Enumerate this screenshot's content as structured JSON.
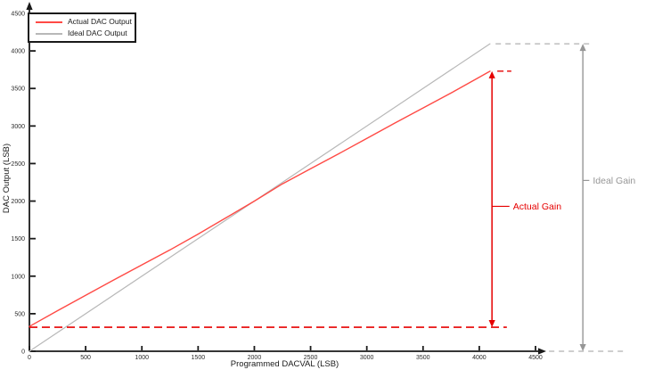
{
  "chart_data": {
    "type": "line",
    "title": "",
    "xlabel": "Programmed DACVAL (LSB)",
    "ylabel": "DAC Output (LSB)",
    "xlim": [
      0,
      4500
    ],
    "ylim": [
      0,
      4500
    ],
    "x_ticks": [
      0,
      500,
      1000,
      1500,
      2000,
      2500,
      3000,
      3500,
      4000,
      4500
    ],
    "y_ticks": [
      0,
      500,
      1000,
      1500,
      2000,
      2500,
      3000,
      3500,
      4000,
      4500
    ],
    "grid": false,
    "axis_color": "#1a1a1a",
    "tick_label_color": "#2b2b2b",
    "legend": {
      "position": "top-left",
      "entries": [
        {
          "label": "Actual DAC Output",
          "color": "#ff4a45"
        },
        {
          "label": "Ideal DAC Output",
          "color": "#b8b8b8"
        }
      ]
    },
    "series": [
      {
        "name": "Ideal DAC Output",
        "color": "#b8b8b8",
        "width": 1.2,
        "x": [
          0,
          4095
        ],
        "y": [
          0,
          4095
        ]
      },
      {
        "name": "Actual DAC Output",
        "color": "#ff4a45",
        "width": 1.4,
        "x": [
          0,
          250,
          500,
          750,
          1000,
          1250,
          1500,
          1750,
          2000,
          2250,
          2500,
          2750,
          3000,
          3250,
          3500,
          3750,
          4000,
          4095
        ],
        "y": [
          330,
          540,
          745,
          950,
          1150,
          1350,
          1560,
          1780,
          2000,
          2230,
          2430,
          2630,
          2835,
          3040,
          3240,
          3440,
          3650,
          3730
        ]
      }
    ],
    "annotations": [
      {
        "id": "actual-offset-dashline",
        "type": "hline",
        "color": "#e60000",
        "width": 1.7,
        "dash": "9 5",
        "y": 320,
        "x_from": 0,
        "x_to": 4245
      },
      {
        "id": "actual-top-dashline",
        "type": "hline",
        "color": "#e60000",
        "width": 1.4,
        "dash": "7 4",
        "y": 3730,
        "x_from": 4160,
        "x_to": 4285
      },
      {
        "id": "ideal-top-dashline",
        "type": "hline",
        "color": "#b0b0b0",
        "width": 1.3,
        "dash": "6 5",
        "y": 4095,
        "x_from": 4145,
        "x_to": 5010
      },
      {
        "id": "ideal-bottom-dashline",
        "type": "hline",
        "color": "#b0b0b0",
        "width": 1.3,
        "dash": "6 5",
        "y": 0,
        "x_from": 4620,
        "x_to": 5285
      },
      {
        "id": "actual-gain-arrow",
        "type": "v-double-arrow",
        "color": "#e60000",
        "width": 1.5,
        "x": 4113,
        "y_from": 320,
        "y_to": 3730,
        "label": "Actual Gain",
        "label_x": 4300,
        "label_y": 1930,
        "label_size": 10.5
      },
      {
        "id": "ideal-gain-arrow",
        "type": "v-double-arrow",
        "color": "#969696",
        "width": 1.4,
        "x": 4921,
        "y_from": 0,
        "y_to": 4095,
        "label": "Ideal Gain",
        "label_x": 5010,
        "label_y": 2275,
        "label_size": 10.5
      }
    ]
  }
}
